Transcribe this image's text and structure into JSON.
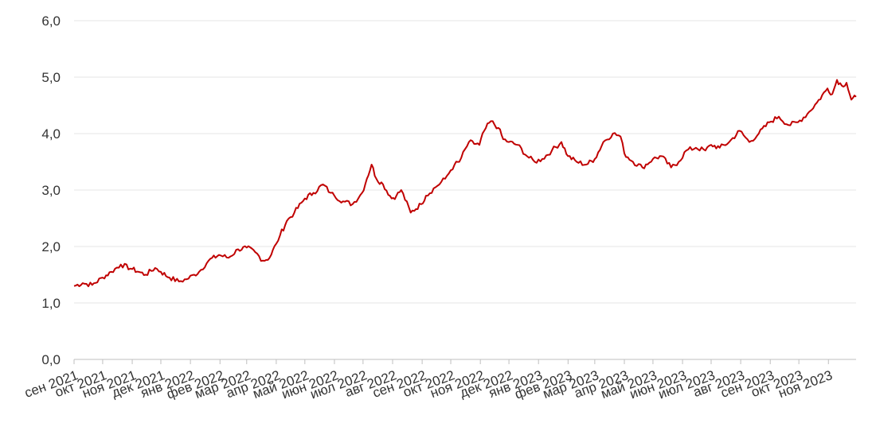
{
  "chart_data": {
    "type": "line",
    "title": "",
    "xlabel": "",
    "ylabel": "",
    "ylim": [
      0,
      6
    ],
    "y_ticks": [
      "0,0",
      "1,0",
      "2,0",
      "3,0",
      "4,0",
      "5,0",
      "6,0"
    ],
    "x_tick_labels": [
      "сен 2021",
      "окт 2021",
      "ноя 2021",
      "дек 2021",
      "янв 2022",
      "фев 2022",
      "мар 2022",
      "апр 2022",
      "май 2022",
      "июн 2022",
      "июл 2022",
      "авг 2022",
      "сен 2022",
      "окт 2022",
      "ноя 2022",
      "дек 2022",
      "янв 2023",
      "фев 2023",
      "мар 2023",
      "апр 2023",
      "май 2023",
      "июн 2023",
      "июл 2023",
      "авг 2023",
      "сен 2023",
      "окт 2023",
      "ноя 2023"
    ],
    "grid": true,
    "legend": "none",
    "line_color": "#c00000",
    "series": [
      {
        "x": [
          "2021-09-01",
          "2021-09-10",
          "2021-09-20",
          "2021-10-01",
          "2021-10-10",
          "2021-10-20",
          "2021-11-01",
          "2021-11-08",
          "2021-11-15",
          "2021-11-25",
          "2021-12-01",
          "2021-12-10",
          "2021-12-20",
          "2021-12-28",
          "2022-01-05",
          "2022-01-10",
          "2022-01-20",
          "2022-01-31",
          "2022-02-10",
          "2022-02-20",
          "2022-03-01",
          "2022-03-10",
          "2022-03-18",
          "2022-03-25",
          "2022-04-01",
          "2022-04-05",
          "2022-04-12",
          "2022-04-20",
          "2022-05-01",
          "2022-05-10",
          "2022-05-20",
          "2022-05-28",
          "2022-06-01",
          "2022-06-10",
          "2022-06-20",
          "2022-06-30",
          "2022-07-05",
          "2022-07-10",
          "2022-07-15",
          "2022-07-22",
          "2022-07-31",
          "2022-08-05",
          "2022-08-10",
          "2022-08-20",
          "2022-08-31",
          "2022-09-05",
          "2022-09-15",
          "2022-09-25",
          "2022-10-01",
          "2022-10-05",
          "2022-10-10",
          "2022-10-20",
          "2022-10-31",
          "2022-11-05",
          "2022-11-12",
          "2022-11-20",
          "2022-11-25",
          "2022-12-01",
          "2022-12-10",
          "2022-12-20",
          "2022-12-28",
          "2023-01-05",
          "2023-01-15",
          "2023-01-25",
          "2023-02-01",
          "2023-02-10",
          "2023-02-20",
          "2023-03-01",
          "2023-03-10",
          "2023-03-20",
          "2023-03-28",
          "2023-04-01",
          "2023-04-10",
          "2023-04-20",
          "2023-05-01",
          "2023-05-10",
          "2023-05-20",
          "2023-05-28",
          "2023-06-05",
          "2023-06-15",
          "2023-06-25",
          "2023-07-01",
          "2023-07-10",
          "2023-07-20",
          "2023-07-31",
          "2023-08-10",
          "2023-08-20",
          "2023-08-31",
          "2023-09-10",
          "2023-09-20",
          "2023-09-30",
          "2023-10-10",
          "2023-10-20",
          "2023-10-31",
          "2023-11-05",
          "2023-11-10",
          "2023-11-15",
          "2023-11-20",
          "2023-11-25",
          "2023-11-30"
        ],
        "y": [
          1.3,
          1.35,
          1.32,
          1.45,
          1.55,
          1.68,
          1.6,
          1.55,
          1.5,
          1.62,
          1.55,
          1.45,
          1.38,
          1.42,
          1.5,
          1.55,
          1.75,
          1.85,
          1.8,
          1.95,
          1.98,
          1.9,
          1.75,
          1.8,
          2.05,
          2.2,
          2.45,
          2.6,
          2.85,
          2.95,
          3.1,
          2.95,
          2.9,
          2.8,
          2.75,
          2.95,
          3.2,
          3.45,
          3.2,
          3.1,
          2.85,
          2.9,
          3.0,
          2.6,
          2.75,
          2.9,
          3.05,
          3.2,
          3.35,
          3.45,
          3.5,
          3.85,
          3.8,
          4.05,
          4.22,
          4.1,
          3.9,
          3.85,
          3.8,
          3.6,
          3.5,
          3.55,
          3.7,
          3.85,
          3.6,
          3.5,
          3.45,
          3.55,
          3.85,
          4.0,
          3.95,
          3.65,
          3.5,
          3.4,
          3.55,
          3.6,
          3.4,
          3.5,
          3.7,
          3.75,
          3.7,
          3.8,
          3.75,
          3.85,
          4.05,
          3.85,
          4.0,
          4.2,
          4.3,
          4.15,
          4.2,
          4.35,
          4.55,
          4.8,
          4.7,
          4.95,
          4.85,
          4.9,
          4.6,
          4.65
        ]
      }
    ]
  }
}
